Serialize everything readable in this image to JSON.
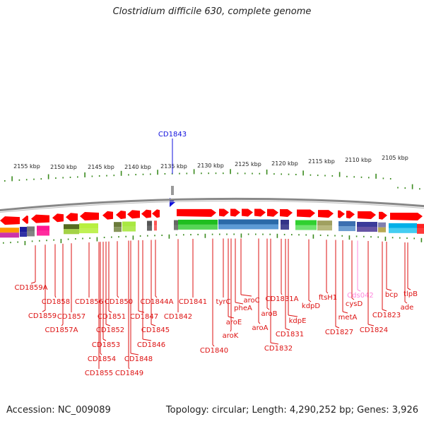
{
  "title": "Clostridium difficile 630, complete genome",
  "accession_text": "Accession: NC_009089",
  "summary_text": "Topology: circular; Length: 4,290,252 bp; Genes: 3,926",
  "colors": {
    "gene": "#ff0000",
    "gene_label": "#dd1111",
    "leader": "#dd1111",
    "selected": "#1010dd",
    "ruler": "#3a8a1e",
    "pseudo": "#ff88dd",
    "backbone": "#888888"
  },
  "scale_labels": [
    "2155 kbp",
    "2150 kbp",
    "2145 kbp",
    "2140 kbp",
    "2135 kbp",
    "2130 kbp",
    "2125 kbp",
    "2120 kbp",
    "2115 kbp",
    "2110 kbp",
    "2105 kbp"
  ],
  "selected_gene": "CD1843",
  "gene_labels": [
    "CD1859A",
    "CD1859",
    "CD1858",
    "CD1857A",
    "CD1857",
    "CD1856",
    "CD1855",
    "CD1854",
    "CD1853",
    "CD1852",
    "CD1851",
    "CD1850",
    "CD1849",
    "CD1848",
    "CD1847",
    "CD1846",
    "CD1845",
    "CD1844A",
    "CD1842",
    "CD1841",
    "CD1840",
    "tyrC",
    "aroE",
    "aroK",
    "pheA",
    "aroC",
    "aroA",
    "aroB",
    "CD1832",
    "CD1831A",
    "CD1831",
    "kdpE",
    "kdpD",
    "ftsH1",
    "CD1827",
    "metA",
    "cysD",
    "Cds042",
    "CD1824",
    "CD1823",
    "bcp",
    "ade",
    "tlpB"
  ]
}
